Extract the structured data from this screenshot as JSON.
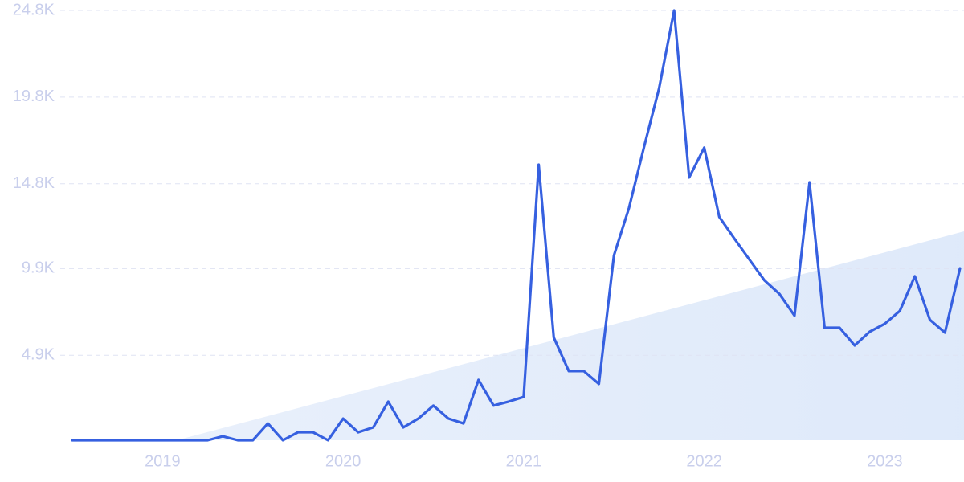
{
  "chart_data": {
    "type": "line",
    "categories": [
      null,
      null,
      null,
      null,
      null,
      null,
      "2019",
      null,
      null,
      null,
      null,
      null,
      null,
      null,
      null,
      null,
      null,
      null,
      "2020",
      null,
      null,
      null,
      null,
      null,
      null,
      null,
      null,
      null,
      null,
      null,
      "2021",
      null,
      null,
      null,
      null,
      null,
      null,
      null,
      null,
      null,
      null,
      null,
      "2022",
      null,
      null,
      null,
      null,
      null,
      null,
      null,
      null,
      null,
      null,
      null,
      "2023",
      null,
      null,
      null,
      null,
      null
    ],
    "series": [
      {
        "color": "#3660e0",
        "values": [
          0,
          0,
          0,
          0,
          0,
          0,
          0,
          0,
          0,
          0,
          230,
          0,
          0,
          970,
          0,
          460,
          460,
          0,
          1250,
          460,
          740,
          2230,
          740,
          1250,
          2000,
          1250,
          970,
          3480,
          2000,
          2230,
          2500,
          15900,
          5930,
          3990,
          3990,
          3250,
          10660,
          13400,
          16920,
          20300,
          24800,
          15160,
          16880,
          12890,
          11640,
          10430,
          9230,
          8440,
          7190,
          14880,
          6490,
          6490,
          5470,
          6260,
          6720,
          7460,
          9460,
          6950,
          6210,
          9920
        ]
      }
    ],
    "ylim": [
      0,
      24800
    ],
    "yticks": [
      {
        "value": 4900,
        "label": "4.9K"
      },
      {
        "value": 9900,
        "label": "9.9K"
      },
      {
        "value": 14800,
        "label": "14.8K"
      },
      {
        "value": 19800,
        "label": "19.8K"
      },
      {
        "value": 24800,
        "label": "24.8K"
      }
    ],
    "grid": true
  }
}
